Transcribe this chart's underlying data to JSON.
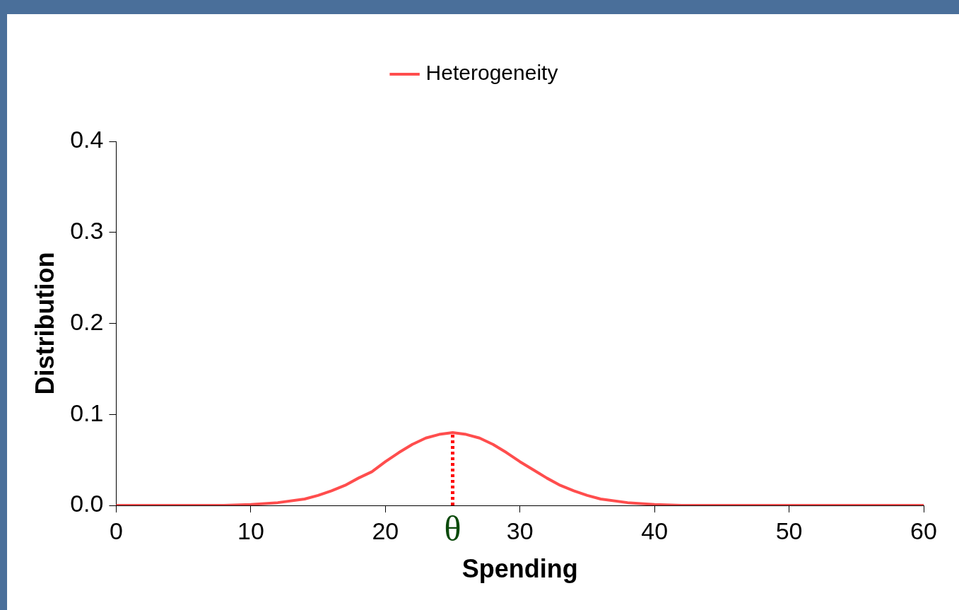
{
  "chart_data": {
    "type": "line",
    "xlabel": "Spending",
    "ylabel": "Distribution",
    "x": [
      0,
      5,
      8,
      10,
      12,
      14,
      15,
      16,
      17,
      18,
      19,
      20,
      21,
      22,
      23,
      24,
      25,
      26,
      27,
      28,
      29,
      30,
      31,
      32,
      33,
      34,
      35,
      36,
      38,
      40,
      42,
      45,
      50,
      55,
      60
    ],
    "series": [
      {
        "name": "Heterogeneity",
        "color": "#ff4d4d",
        "values": [
          0,
          0,
          0,
          0.001,
          0.003,
          0.007,
          0.011,
          0.016,
          0.022,
          0.03,
          0.037,
          0.048,
          0.058,
          0.067,
          0.074,
          0.078,
          0.08,
          0.078,
          0.074,
          0.067,
          0.058,
          0.048,
          0.039,
          0.03,
          0.022,
          0.016,
          0.011,
          0.007,
          0.003,
          0.001,
          0,
          0,
          0,
          0,
          0
        ]
      }
    ],
    "xlim": [
      0,
      60
    ],
    "xticks": [
      0,
      10,
      20,
      30,
      40,
      50,
      60
    ],
    "ylim": [
      0,
      0.4
    ],
    "yticks": [
      {
        "value": 0,
        "label": "0.0"
      },
      {
        "value": 0.1,
        "label": "0.1"
      },
      {
        "value": 0.2,
        "label": "0.2"
      },
      {
        "value": 0.3,
        "label": "0.3"
      },
      {
        "value": 0.4,
        "label": "0.4"
      }
    ],
    "ref_lines": [
      {
        "axis": "x",
        "value": 25,
        "label": "θ",
        "color": "#ff0000",
        "line_style": "dotted"
      }
    ],
    "legend": "top",
    "marker": "none",
    "line_style": "solid"
  }
}
